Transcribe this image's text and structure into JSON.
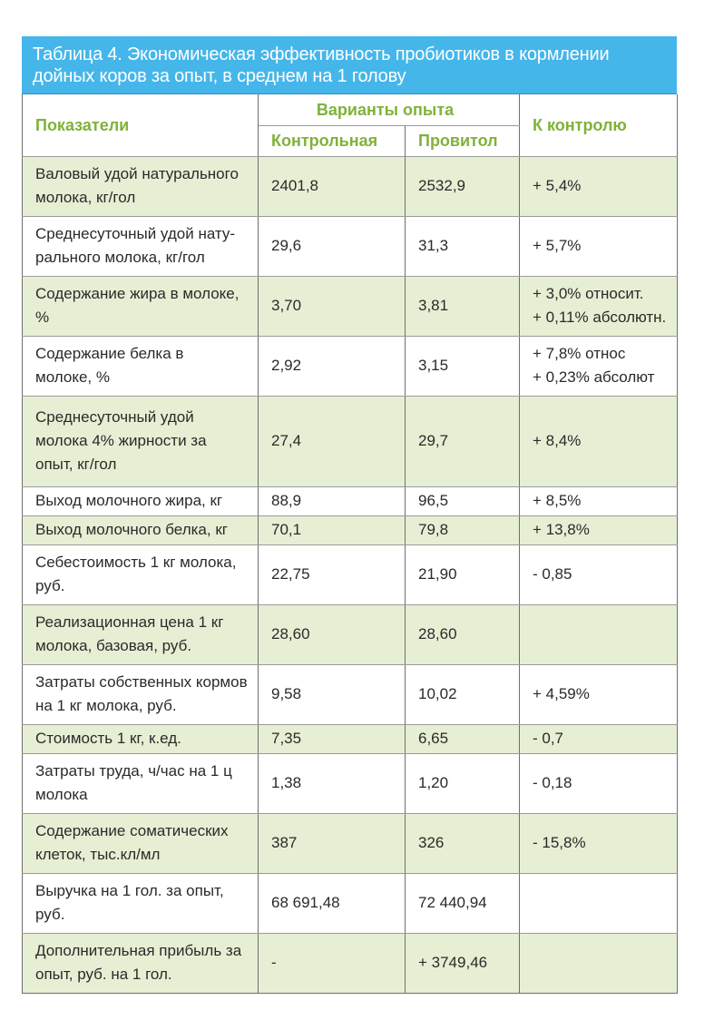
{
  "caption": {
    "line1": "Таблица 4. Экономическая эффективность пробиотиков в кормлении",
    "line2": "дойных коров за опыт, в среднем на 1 голову"
  },
  "header": {
    "indicators": "Показатели",
    "variants": "Варианты опыта",
    "control": "Контрольная",
    "provitol": "Провитол",
    "to_control": "К контролю"
  },
  "rows": [
    {
      "label": "Валовый удой натурального\nмолока, кг/гол",
      "control": "2401,8",
      "provitol": "2532,9",
      "delta": "+ 5,4%"
    },
    {
      "label": "Среднесуточный удой нату-\nрального молока, кг/гол",
      "control": "29,6",
      "provitol": "31,3",
      "delta": "+ 5,7%"
    },
    {
      "label": "Содержание жира в молоке,\n%",
      "control": "3,70",
      "provitol": "3,81",
      "delta": "+ 3,0% относит.\n+ 0,11% абсолютн."
    },
    {
      "label": "Содержание белка в\nмолоке, %",
      "control": "2,92",
      "provitol": "3,15",
      "delta": "+ 7,8% относ\n+ 0,23% абсолют"
    },
    {
      "label": "Среднесуточный удой\nмолока 4% жирности за\nопыт, кг/гол",
      "control": "27,4",
      "provitol": "29,7",
      "delta": "+ 8,4%"
    },
    {
      "label": "Выход молочного жира, кг",
      "control": "88,9",
      "provitol": "96,5",
      "delta": "+ 8,5%"
    },
    {
      "label": "Выход молочного белка, кг",
      "control": "70,1",
      "provitol": "79,8",
      "delta": "+ 13,8%"
    },
    {
      "label": "Себестоимость 1 кг молока,\nруб.",
      "control": "22,75",
      "provitol": "21,90",
      "delta": "- 0,85"
    },
    {
      "label": "Реализационная цена 1 кг\nмолока, базовая, руб.",
      "control": "28,60",
      "provitol": "28,60",
      "delta": ""
    },
    {
      "label": "Затраты собственных кормов\nна 1 кг молока, руб.",
      "control": "9,58",
      "provitol": "10,02",
      "delta": "+ 4,59%"
    },
    {
      "label": "Стоимость 1 кг, к.ед.",
      "control": "7,35",
      "provitol": "6,65",
      "delta": "- 0,7"
    },
    {
      "label": "Затраты труда, ч/час на 1 ц\nмолока",
      "control": "1,38",
      "provitol": "1,20",
      "delta": "- 0,18"
    },
    {
      "label": "Содержание соматических\nклеток, тыс.кл/мл",
      "control": "387",
      "provitol": "326",
      "delta": "- 15,8%"
    },
    {
      "label": "Выручка на 1 гол. за опыт,\nруб.",
      "control": "68 691,48",
      "provitol": "72 440,94",
      "delta": ""
    },
    {
      "label": "Дополнительная прибыль за\nопыт, руб. на 1 гол.",
      "control": "-",
      "provitol": "+ 3749,46",
      "delta": ""
    }
  ]
}
